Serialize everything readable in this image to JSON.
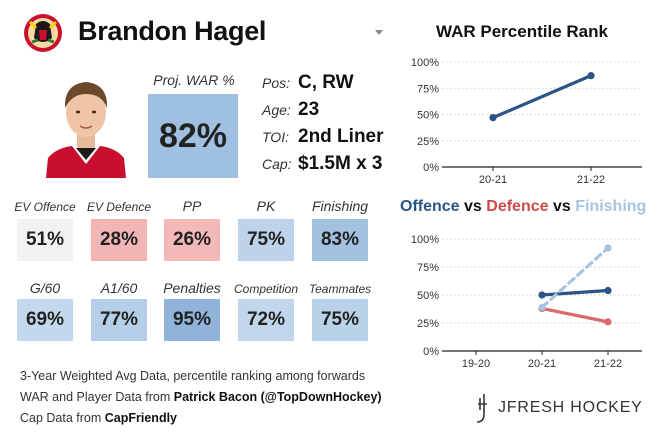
{
  "header": {
    "player_name": "Brandon Hagel"
  },
  "projection": {
    "label": "Proj. WAR %",
    "value": "82%",
    "color": "#9fc0e0"
  },
  "info": {
    "pos_label": "Pos:",
    "pos_value": "C, RW",
    "age_label": "Age:",
    "age_value": "23",
    "toi_label": "TOI:",
    "toi_value": "2nd Liner",
    "cap_label": "Cap:",
    "cap_value": "$1.5M x 3"
  },
  "metrics_row1": [
    {
      "label": "EV Offence",
      "value": "51%",
      "color": "#f2f2f2"
    },
    {
      "label": "EV Defence",
      "value": "28%",
      "color": "#f2b5b5"
    },
    {
      "label": "PP",
      "value": "26%",
      "color": "#f3b8b8"
    },
    {
      "label": "PK",
      "value": "75%",
      "color": "#bcd3ea"
    },
    {
      "label": "Finishing",
      "value": "83%",
      "color": "#a2c1e1"
    }
  ],
  "metrics_row2": [
    {
      "label": "G/60",
      "value": "69%",
      "color": "#c3d8ec"
    },
    {
      "label": "A1/60",
      "value": "77%",
      "color": "#b5cfe8"
    },
    {
      "label": "Penalties",
      "value": "95%",
      "color": "#8fb3da"
    },
    {
      "label": "Competition",
      "value": "72%",
      "color": "#c1d6eb"
    },
    {
      "label": "Teammates",
      "value": "75%",
      "color": "#bad2e9"
    }
  ],
  "footer": {
    "line1": "3-Year Weighted Avg Data, percentile ranking among forwards",
    "line2_prefix": "WAR and Player Data from ",
    "line2_source": "Patrick Bacon (@TopDownHockey)",
    "line3_prefix": "Cap Data from ",
    "line3_source": "CapFriendly"
  },
  "brand": {
    "name": "JFRESH HOCKEY"
  },
  "chart_data": [
    {
      "type": "line",
      "title": "WAR Percentile Rank",
      "categories": [
        "20-21",
        "21-22"
      ],
      "series": [
        {
          "values": [
            47,
            87
          ],
          "color": "#2a5586",
          "dashed": false
        }
      ],
      "yticks": [
        "100%",
        "75%",
        "50%",
        "25%",
        "0%"
      ],
      "ylim": [
        0,
        100
      ],
      "grid": "horizontal-dotted",
      "legend": "none"
    },
    {
      "type": "line",
      "title_parts": [
        {
          "text": "Offence",
          "color": "#2a5586"
        },
        {
          "text": " vs ",
          "color": "#111111"
        },
        {
          "text": "Defence",
          "color": "#d04a4a"
        },
        {
          "text": " vs ",
          "color": "#111111"
        },
        {
          "text": "Finishing",
          "color": "#a8c4e0"
        }
      ],
      "categories": [
        "19-20",
        "20-21",
        "21-22"
      ],
      "series": [
        {
          "name": "Offence",
          "values": [
            null,
            50,
            54
          ],
          "color": "#2a5586",
          "dashed": false
        },
        {
          "name": "Defence",
          "values": [
            null,
            38,
            26
          ],
          "color": "#d9696b",
          "dashed": false
        },
        {
          "name": "Finishing",
          "values": [
            null,
            39,
            92
          ],
          "color": "#a8c4e0",
          "dashed": true
        }
      ],
      "yticks": [
        "100%",
        "75%",
        "50%",
        "25%",
        "0%"
      ],
      "ylim": [
        0,
        100
      ],
      "grid": "horizontal-dotted",
      "legend": "title"
    }
  ]
}
